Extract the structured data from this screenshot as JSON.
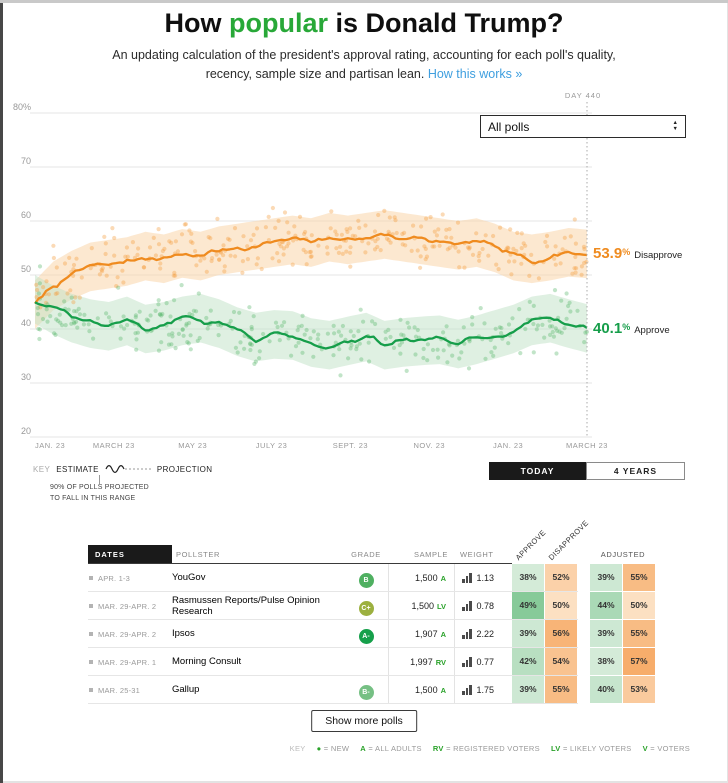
{
  "header": {
    "title_pre": "How ",
    "title_highlight": "popular",
    "title_post": " is Donald Trump?",
    "subtitle_line1": "An updating calculation of the president's approval rating, accounting for each poll's quality,",
    "subtitle_line2": "recency, sample size and partisan lean.",
    "link_text": "How this works »"
  },
  "controls": {
    "dropdown_value": "All polls",
    "today_label": "TODAY",
    "four_years_label": "4 YEARS"
  },
  "chart_data": {
    "type": "line",
    "unit": "%",
    "y_range": [
      20,
      80
    ],
    "y_tick_labels": [
      "80%",
      "70",
      "60",
      "50",
      "40",
      "30",
      "20"
    ],
    "x_tick_labels": [
      "JAN. 23",
      "MARCH 23",
      "MAY 23",
      "JULY 23",
      "SEPT. 23",
      "NOV. 23",
      "JAN. 23",
      "MARCH 23"
    ],
    "day_marker": "DAY 440",
    "band_halfwidth": 4.5,
    "series": [
      {
        "name": "Disapprove",
        "end_label": "53.9",
        "color": "#ef8b1f",
        "dot_color": "#f59d3f",
        "band_color": "#f9d2a2",
        "values": [
          44.5,
          48,
          50,
          51.5,
          52,
          52.5,
          53.5,
          53,
          54,
          53.5,
          54.5,
          55,
          55.5,
          56,
          56.5,
          56,
          57,
          56.5,
          57,
          57.5,
          57,
          56.5,
          56,
          55.5,
          56,
          55,
          53.5,
          53,
          53.5,
          54.2,
          53.9
        ]
      },
      {
        "name": "Approve",
        "end_label": "40.1",
        "color": "#169e4a",
        "dot_color": "#5cb96e",
        "band_color": "#bfe2c5",
        "values": [
          45.5,
          43.5,
          42,
          41,
          40.5,
          41.5,
          40,
          40.5,
          41.5,
          42,
          41,
          39.5,
          38.5,
          39,
          38.8,
          37.5,
          37,
          37.8,
          38.5,
          37,
          37.5,
          37.8,
          38,
          37.2,
          38,
          39,
          40,
          41.5,
          42,
          41,
          40.1
        ]
      }
    ]
  },
  "legend_key": {
    "key_label": "KEY",
    "estimate_label": "ESTIMATE",
    "projection_label": "PROJECTION",
    "band_note_line1": "90% OF POLLS PROJECTED",
    "band_note_line2": "TO FALL IN THIS RANGE"
  },
  "table": {
    "col_dates": "DATES",
    "col_pollster": "POLLSTER",
    "col_grade": "GRADE",
    "col_sample": "SAMPLE",
    "col_weight": "WEIGHT",
    "col_approve": "APPROVE",
    "col_disapprove": "DISAPPROVE",
    "col_adjusted": "ADJUSTED",
    "show_more_label": "Show more polls",
    "rows": [
      {
        "dates": "APR. 1-3",
        "pollster": "YouGov",
        "grade": "B",
        "sample": "1,500",
        "sample_type": "A",
        "weight": "1.13",
        "approve": 38,
        "disapprove": 52,
        "adj_approve": 39,
        "adj_disapprove": 55
      },
      {
        "dates": "MAR. 29-APR. 2",
        "pollster": "Rasmussen Reports/Pulse Opinion Research",
        "grade": "C+",
        "sample": "1,500",
        "sample_type": "LV",
        "weight": "0.78",
        "approve": 49,
        "disapprove": 50,
        "adj_approve": 44,
        "adj_disapprove": 50
      },
      {
        "dates": "MAR. 29-APR. 2",
        "pollster": "Ipsos",
        "grade": "A-",
        "sample": "1,907",
        "sample_type": "A",
        "weight": "2.22",
        "approve": 39,
        "disapprove": 56,
        "adj_approve": 39,
        "adj_disapprove": 55
      },
      {
        "dates": "MAR. 29-APR. 1",
        "pollster": "Morning Consult",
        "grade": "",
        "sample": "1,997",
        "sample_type": "RV",
        "weight": "0.77",
        "approve": 42,
        "disapprove": 54,
        "adj_approve": 38,
        "adj_disapprove": 57
      },
      {
        "dates": "MAR. 25-31",
        "pollster": "Gallup",
        "grade": "B-",
        "sample": "1,500",
        "sample_type": "A",
        "weight": "1.75",
        "approve": 39,
        "disapprove": 55,
        "adj_approve": 40,
        "adj_disapprove": 53
      }
    ]
  },
  "footer_key": {
    "key_label": "KEY",
    "items": [
      {
        "code": "●",
        "meaning": "= NEW"
      },
      {
        "code": "A",
        "meaning": "= ALL ADULTS"
      },
      {
        "code": "RV",
        "meaning": "= REGISTERED VOTERS"
      },
      {
        "code": "LV",
        "meaning": "= LIKELY VOTERS"
      },
      {
        "code": "V",
        "meaning": "= VOTERS"
      }
    ]
  }
}
